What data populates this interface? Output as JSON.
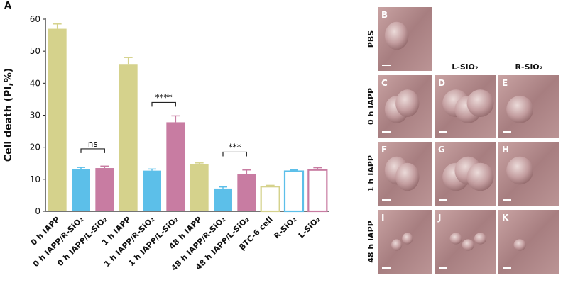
{
  "chart_data": {
    "type": "bar",
    "panel_label": "A",
    "y_label": "Cell death (PI,%)",
    "categories": [
      "0 h IAPP",
      "0 h IAPP/R-SiO₂",
      "0 h IAPP/L-SiO₂",
      "1 h IAPP",
      "1 h IAPP/R-SiO₂",
      "1 h IAPP/L-SiO₂",
      "48 h IAPP",
      "48 h IAPP/R-SiO₂",
      "48 h IAPP/L-SiO₂",
      "βTC-6 cell",
      "R-SiO₂",
      "L-SiO₂"
    ],
    "values": [
      57,
      13.2,
      13.5,
      46,
      12.7,
      27.8,
      14.8,
      7.1,
      11.7,
      7.7,
      12.5,
      12.9
    ],
    "errors": [
      1.5,
      0.5,
      0.6,
      2,
      0.5,
      2,
      0.3,
      0.5,
      1.2,
      0.4,
      0.4,
      0.7
    ],
    "colors": [
      "#d5d28c",
      "#5cbfe9",
      "#c87ca2",
      "#d5d28c",
      "#5cbfe9",
      "#c87ca2",
      "#d5d28c",
      "#5cbfe9",
      "#c87ca2",
      "#d5d28c",
      "#5cbfe9",
      "#c87ca2"
    ],
    "hollow": [
      false,
      false,
      false,
      false,
      false,
      false,
      false,
      false,
      false,
      true,
      true,
      true
    ],
    "ylim": [
      0,
      60
    ],
    "yticks": [
      0,
      10,
      20,
      30,
      40,
      50,
      60
    ],
    "annotations": [
      "ns",
      "****",
      "***"
    ]
  },
  "image_panels": {
    "column_labels": [
      "L-SiO₂",
      "R-SiO₂"
    ],
    "row_labels": [
      "PBS",
      "0 h IAPP",
      "1 h IAPP",
      "48 h IAPP"
    ],
    "letters": [
      "B",
      "C",
      "D",
      "E",
      "F",
      "G",
      "H",
      "I",
      "J",
      "K"
    ]
  }
}
